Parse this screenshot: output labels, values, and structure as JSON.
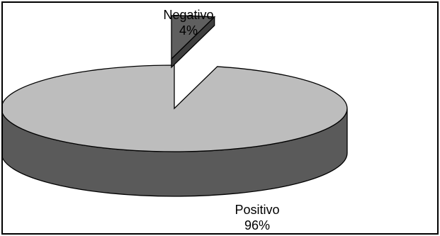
{
  "chart_data": {
    "type": "pie",
    "style": "3d-exploded",
    "categories": [
      "Negativo",
      "Positivo"
    ],
    "values": [
      4,
      96
    ],
    "value_labels": [
      "4%",
      "96%"
    ],
    "colors": {
      "Negativo": "#5f5f5f",
      "Positivo": "#bdbdbd",
      "positivo_side": "#5a5a5a",
      "negativo_side": "#3f3f3f",
      "edge": "#000000",
      "background": "#ffffff"
    },
    "title": "",
    "legend": "none",
    "grid": false
  }
}
